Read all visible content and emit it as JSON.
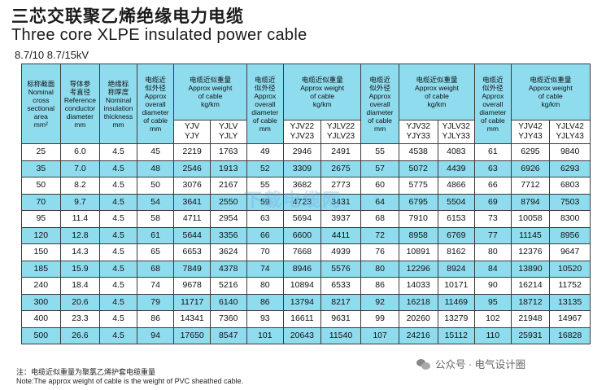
{
  "title_cn": "三芯交联聚乙烯绝缘电力电缆",
  "title_en": "Three core XLPE insulated power cable",
  "voltage": "8.7/10   8.7/15kV",
  "headers": {
    "h1": [
      "标称截面",
      "Nominal",
      "cross",
      "sectional",
      "area",
      "mm²"
    ],
    "h2": [
      "导体参",
      "考直径",
      "Reference",
      "conductor",
      "diameter",
      "mm"
    ],
    "h3": [
      "绝缘标",
      "称厚度",
      "Nominal",
      "insulation",
      "thickness",
      "mm"
    ],
    "h4": [
      "电缆近",
      "似外径",
      "Approx",
      "overall",
      "diameter",
      "of cable",
      "mm"
    ],
    "h5": [
      "电缆近似重量",
      "Approx weight",
      "of cable",
      "kg/km"
    ],
    "h5a": [
      "YJV",
      "YJY"
    ],
    "h5b": [
      "YJLV",
      "YJLY"
    ],
    "h6": [
      "电缆近",
      "似外径",
      "Approx",
      "overall",
      "diameter",
      "of cable",
      "mm"
    ],
    "h7": [
      "电缆近似重量",
      "Approx weight",
      "of cable",
      "kg/km"
    ],
    "h7a": [
      "YJV22",
      "YJV23"
    ],
    "h7b": [
      "YJLV22",
      "YJLV23"
    ],
    "h8": [
      "电缆近",
      "似外径",
      "Approx",
      "overall",
      "diameter",
      "of cable",
      "mm"
    ],
    "h9": [
      "电缆近似重量",
      "Approx weight",
      "of cable",
      "kg/km"
    ],
    "h9a": [
      "YJV32",
      "YJY33"
    ],
    "h9b": [
      "YJLV32",
      "YJLY33"
    ],
    "h10": [
      "电缆近",
      "似外径",
      "Approx",
      "overall",
      "diameter",
      "of cable",
      "mm"
    ],
    "h11": [
      "电缆近似重量",
      "Approx weight",
      "of cable",
      "kg/km"
    ],
    "h11a": [
      "YJV42",
      "YJY43"
    ],
    "h11b": [
      "YJLV42",
      "YJLY43"
    ]
  },
  "rows": [
    [
      "25",
      "6.0",
      "4.5",
      "45",
      "2219",
      "1763",
      "49",
      "2946",
      "2491",
      "55",
      "4538",
      "4083",
      "61",
      "6295",
      "9840"
    ],
    [
      "35",
      "7.0",
      "4.5",
      "48",
      "2546",
      "1913",
      "52",
      "3309",
      "2675",
      "57",
      "5072",
      "4439",
      "63",
      "6926",
      "6293"
    ],
    [
      "50",
      "8.2",
      "4.5",
      "50",
      "3076",
      "2167",
      "55",
      "3682",
      "2773",
      "60",
      "5775",
      "4866",
      "66",
      "7712",
      "6803"
    ],
    [
      "70",
      "9.7",
      "4.5",
      "54",
      "3641",
      "2550",
      "59",
      "4723",
      "3431",
      "64",
      "6795",
      "5504",
      "69",
      "8794",
      "7503"
    ],
    [
      "95",
      "11.4",
      "4.5",
      "58",
      "4711",
      "2954",
      "63",
      "5694",
      "3937",
      "68",
      "7910",
      "6153",
      "73",
      "10058",
      "8300"
    ],
    [
      "120",
      "12.8",
      "4.5",
      "61",
      "5644",
      "3356",
      "66",
      "6600",
      "4411",
      "72",
      "8958",
      "6769",
      "77",
      "11145",
      "8956"
    ],
    [
      "150",
      "14.3",
      "4.5",
      "65",
      "6653",
      "3624",
      "70",
      "7668",
      "4939",
      "76",
      "10891",
      "8162",
      "80",
      "12376",
      "9647"
    ],
    [
      "185",
      "15.9",
      "4.5",
      "68",
      "7849",
      "4378",
      "74",
      "8946",
      "5576",
      "80",
      "12296",
      "8924",
      "84",
      "13890",
      "10520"
    ],
    [
      "240",
      "18.4",
      "4.5",
      "74",
      "9678",
      "5216",
      "80",
      "10894",
      "6533",
      "86",
      "14033",
      "10171",
      "90",
      "16214",
      "11752"
    ],
    [
      "300",
      "20.6",
      "4.5",
      "79",
      "11717",
      "6140",
      "86",
      "13794",
      "8217",
      "92",
      "16218",
      "11469",
      "95",
      "18712",
      "13135"
    ],
    [
      "400",
      "23.3",
      "4.5",
      "86",
      "14341",
      "7360",
      "93",
      "16611",
      "9631",
      "99",
      "20260",
      "13279",
      "102",
      "21948",
      "14967"
    ],
    [
      "500",
      "26.6",
      "4.5",
      "94",
      "17650",
      "8547",
      "101",
      "20643",
      "11540",
      "107",
      "24216",
      "15112",
      "110",
      "25931",
      "16828"
    ]
  ],
  "watermark": "下载电缆网",
  "note_cn": "注：电缆近似重量为聚氯乙烯护套电缆重量",
  "note_en": "Note:The approx weight of cable is the weight of PVC sheathed cable.",
  "brand": "公众号 · 电气设计圈",
  "colors": {
    "header_bg": "#8fdcef",
    "border": "#3b3b3b"
  }
}
